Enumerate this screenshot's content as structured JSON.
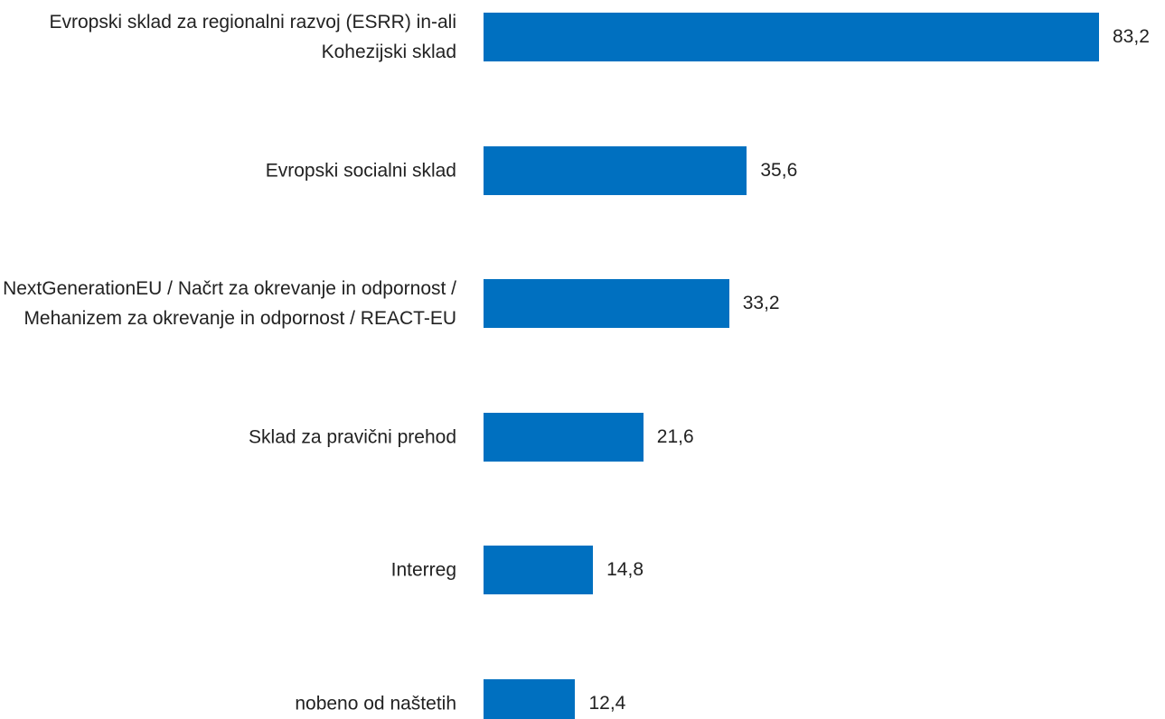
{
  "chart_data": {
    "type": "bar",
    "orientation": "horizontal",
    "categories": [
      "Evropski sklad za regionalni razvoj (ESRR) in-ali Kohezijski sklad",
      "Evropski socialni sklad",
      "NextGenerationEU / Načrt za okrevanje in odpornost / Mehanizem za okrevanje in odpornost / REACT-EU",
      "Sklad za pravični prehod",
      "Interreg",
      "nobeno od naštetih"
    ],
    "values": [
      83.2,
      35.6,
      33.2,
      21.6,
      14.8,
      12.4
    ],
    "value_labels": [
      "83,2",
      "35,6",
      "33,2",
      "21,6",
      "14,8",
      "12,4"
    ],
    "color": "#0070c0"
  }
}
